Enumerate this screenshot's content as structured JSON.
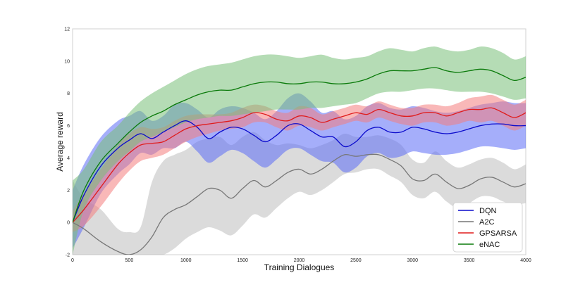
{
  "chart_data": {
    "type": "line",
    "title": "",
    "xlabel": "Training Dialogues",
    "ylabel": "Average reward",
    "xlim": [
      0,
      4000
    ],
    "ylim": [
      -2,
      12
    ],
    "x_ticks": [
      0,
      500,
      1000,
      1500,
      2000,
      2500,
      3000,
      3500,
      4000
    ],
    "y_ticks": [
      -2,
      0,
      2,
      4,
      6,
      8,
      10,
      12
    ],
    "grid": false,
    "legend_position": "lower-right",
    "series": [
      {
        "name": "A2C",
        "color": "#777777",
        "band_color": "#bdbdbd",
        "x": [
          0,
          100,
          250,
          400,
          500,
          600,
          700,
          800,
          900,
          1000,
          1100,
          1200,
          1300,
          1400,
          1500,
          1600,
          1700,
          1800,
          1900,
          2000,
          2100,
          2200,
          2300,
          2400,
          2500,
          2600,
          2700,
          2800,
          2900,
          3000,
          3100,
          3200,
          3300,
          3400,
          3500,
          3600,
          3700,
          3800,
          3900,
          4000
        ],
        "mean": [
          0.0,
          -0.4,
          -1.2,
          -1.8,
          -2.0,
          -1.7,
          -0.9,
          0.3,
          0.8,
          1.1,
          1.6,
          2.1,
          2.0,
          1.5,
          2.1,
          2.6,
          2.2,
          2.6,
          3.1,
          3.3,
          3.0,
          3.3,
          3.8,
          4.2,
          4.1,
          4.2,
          4.2,
          3.9,
          3.5,
          2.7,
          2.6,
          3.0,
          2.5,
          2.1,
          2.3,
          2.7,
          2.8,
          2.5,
          2.2,
          2.4
        ],
        "lower": [
          -2.0,
          -2.0,
          -2.0,
          -2.0,
          -2.0,
          -2.0,
          -2.0,
          -2.0,
          -1.6,
          -1.0,
          -0.6,
          -0.3,
          -0.5,
          -0.8,
          -0.2,
          0.5,
          0.3,
          0.9,
          1.5,
          1.9,
          1.7,
          2.0,
          2.5,
          3.0,
          3.1,
          3.3,
          3.3,
          2.9,
          2.5,
          1.7,
          1.5,
          1.9,
          1.3,
          0.9,
          1.2,
          1.6,
          1.6,
          1.3,
          1.1,
          1.2
        ],
        "upper": [
          2.6,
          1.5,
          0.8,
          -0.4,
          -0.6,
          -0.3,
          2.5,
          3.8,
          4.2,
          4.5,
          5.0,
          5.2,
          5.3,
          4.8,
          5.3,
          5.6,
          5.1,
          4.8,
          4.9,
          4.8,
          4.6,
          4.8,
          5.1,
          5.5,
          5.3,
          5.3,
          5.4,
          5.2,
          4.8,
          3.9,
          3.7,
          4.4,
          3.8,
          3.4,
          3.6,
          3.9,
          4.0,
          3.7,
          3.3,
          3.6
        ]
      },
      {
        "name": "DQN",
        "color": "#0b0bcc",
        "band_color": "#5b6cf5",
        "x": [
          0,
          100,
          250,
          400,
          500,
          600,
          700,
          800,
          900,
          1000,
          1100,
          1200,
          1300,
          1400,
          1500,
          1600,
          1700,
          1800,
          1900,
          2000,
          2100,
          2200,
          2300,
          2400,
          2500,
          2600,
          2700,
          2800,
          2900,
          3000,
          3100,
          3200,
          3300,
          3400,
          3500,
          3600,
          3700,
          3800,
          3900,
          4000
        ],
        "mean": [
          0.0,
          1.7,
          3.5,
          4.6,
          5.1,
          5.5,
          5.2,
          5.6,
          6.0,
          6.3,
          5.9,
          5.2,
          5.6,
          5.9,
          5.8,
          5.4,
          5.0,
          5.4,
          6.0,
          6.1,
          5.7,
          5.3,
          5.3,
          4.7,
          5.0,
          5.7,
          5.9,
          5.6,
          5.6,
          5.9,
          5.8,
          5.6,
          5.5,
          5.6,
          5.8,
          6.0,
          6.1,
          6.1,
          6.0,
          6.0
        ],
        "lower": [
          -1.6,
          -0.3,
          1.8,
          3.0,
          3.6,
          4.3,
          4.2,
          4.6,
          4.6,
          5.0,
          4.4,
          3.7,
          4.1,
          4.5,
          4.3,
          3.8,
          3.4,
          3.9,
          4.5,
          4.6,
          4.2,
          3.8,
          3.7,
          3.1,
          3.4,
          4.1,
          4.3,
          4.0,
          4.1,
          4.4,
          4.3,
          4.2,
          4.2,
          4.3,
          4.5,
          4.7,
          4.7,
          4.6,
          4.5,
          4.6
        ],
        "upper": [
          2.0,
          3.6,
          5.3,
          6.3,
          6.6,
          6.9,
          6.3,
          6.6,
          7.3,
          7.4,
          7.0,
          6.5,
          7.0,
          7.2,
          7.1,
          6.8,
          6.4,
          6.9,
          7.7,
          8.0,
          7.5,
          6.8,
          6.9,
          6.4,
          6.6,
          7.2,
          7.4,
          7.1,
          7.0,
          7.2,
          7.1,
          6.9,
          6.8,
          6.9,
          7.1,
          7.3,
          7.4,
          7.5,
          7.4,
          7.4
        ]
      },
      {
        "name": "GPSARSA",
        "color": "#e01b1b",
        "band_color": "#f47e7e",
        "x": [
          0,
          100,
          250,
          400,
          500,
          600,
          700,
          800,
          900,
          1000,
          1100,
          1200,
          1300,
          1400,
          1500,
          1600,
          1700,
          1800,
          1900,
          2000,
          2100,
          2200,
          2300,
          2400,
          2500,
          2600,
          2700,
          2800,
          2900,
          3000,
          3100,
          3200,
          3300,
          3400,
          3500,
          3600,
          3700,
          3800,
          3900,
          4000
        ],
        "mean": [
          0.0,
          0.8,
          2.2,
          3.6,
          4.3,
          4.8,
          4.9,
          5.0,
          5.4,
          5.8,
          6.0,
          6.1,
          6.2,
          6.3,
          6.5,
          6.8,
          6.7,
          6.4,
          6.3,
          6.6,
          6.5,
          6.2,
          6.4,
          6.6,
          6.8,
          6.7,
          7.0,
          6.8,
          6.6,
          6.6,
          6.8,
          6.8,
          6.6,
          6.8,
          7.0,
          7.0,
          7.1,
          6.8,
          6.5,
          6.8
        ],
        "lower": [
          -0.6,
          -0.2,
          1.0,
          2.4,
          3.2,
          3.8,
          4.0,
          4.2,
          4.6,
          5.0,
          5.3,
          5.5,
          5.7,
          5.8,
          5.9,
          6.2,
          6.2,
          5.9,
          5.7,
          6.0,
          5.9,
          5.7,
          5.9,
          6.1,
          6.3,
          6.2,
          6.5,
          6.3,
          6.1,
          6.0,
          6.2,
          6.2,
          6.0,
          6.1,
          6.3,
          6.2,
          6.3,
          6.0,
          5.7,
          6.0
        ],
        "upper": [
          0.7,
          1.8,
          3.3,
          4.8,
          5.5,
          5.9,
          5.8,
          5.9,
          6.3,
          6.6,
          6.7,
          6.7,
          6.7,
          6.8,
          7.1,
          7.3,
          7.2,
          6.9,
          6.8,
          7.2,
          7.1,
          6.7,
          6.9,
          7.1,
          7.3,
          7.2,
          7.5,
          7.3,
          7.1,
          7.1,
          7.3,
          7.3,
          7.2,
          7.4,
          7.7,
          7.8,
          7.9,
          7.6,
          7.3,
          7.6
        ]
      },
      {
        "name": "eNAC",
        "color": "#0a7a0a",
        "band_color": "#79c079",
        "x": [
          0,
          100,
          250,
          400,
          500,
          600,
          700,
          800,
          900,
          1000,
          1100,
          1200,
          1300,
          1400,
          1500,
          1600,
          1700,
          1800,
          1900,
          2000,
          2100,
          2200,
          2300,
          2400,
          2500,
          2600,
          2700,
          2800,
          2900,
          3000,
          3100,
          3200,
          3300,
          3400,
          3500,
          3600,
          3700,
          3800,
          3900,
          4000
        ],
        "mean": [
          0.0,
          2.0,
          3.8,
          4.9,
          5.6,
          6.2,
          6.6,
          6.9,
          7.3,
          7.6,
          7.9,
          8.1,
          8.2,
          8.2,
          8.4,
          8.6,
          8.7,
          8.7,
          8.6,
          8.6,
          8.7,
          8.7,
          8.6,
          8.6,
          8.7,
          8.9,
          9.2,
          9.4,
          9.4,
          9.4,
          9.5,
          9.6,
          9.4,
          9.3,
          9.4,
          9.5,
          9.4,
          9.1,
          8.8,
          9.0
        ],
        "lower": [
          -2.0,
          0.8,
          2.6,
          3.8,
          4.4,
          5.0,
          5.3,
          5.6,
          5.9,
          6.2,
          6.4,
          6.5,
          6.6,
          6.6,
          6.7,
          6.8,
          6.9,
          7.0,
          7.0,
          7.0,
          7.1,
          7.1,
          7.2,
          7.3,
          7.4,
          7.7,
          8.0,
          8.1,
          8.1,
          8.2,
          8.3,
          8.3,
          8.2,
          8.1,
          8.1,
          8.1,
          8.0,
          7.8,
          7.6,
          7.7
        ],
        "upper": [
          2.6,
          3.3,
          5.0,
          6.0,
          6.8,
          7.5,
          8.0,
          8.4,
          8.8,
          9.2,
          9.5,
          9.7,
          9.8,
          9.9,
          10.1,
          10.3,
          10.4,
          10.4,
          10.3,
          10.2,
          10.3,
          10.4,
          10.2,
          10.1,
          10.2,
          10.3,
          10.6,
          10.8,
          10.7,
          10.6,
          10.8,
          10.9,
          10.7,
          10.6,
          10.7,
          10.9,
          10.8,
          10.5,
          10.1,
          10.3
        ]
      }
    ],
    "legend_order": [
      "DQN",
      "A2C",
      "GPSARSA",
      "eNAC"
    ]
  }
}
